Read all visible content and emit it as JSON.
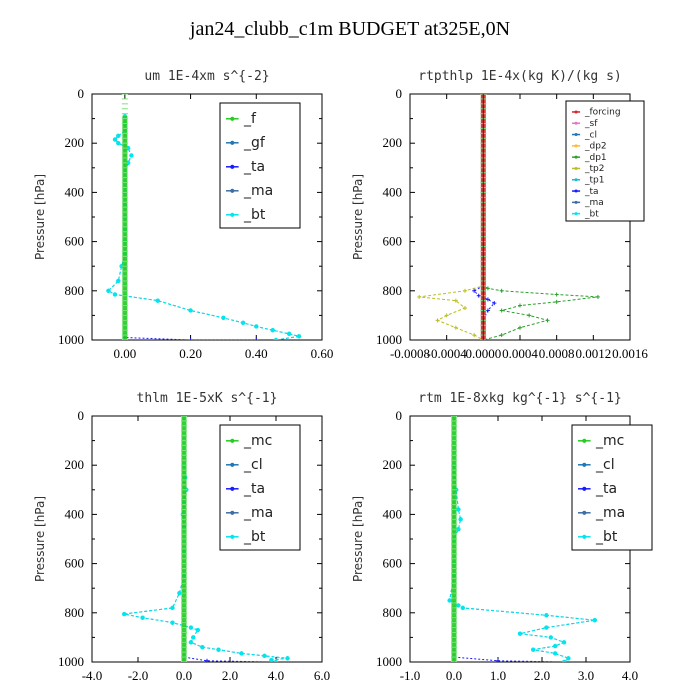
{
  "figure_title": "jan24_clubb_c1m  BUDGET at325E,0N",
  "colors": {
    "f": "#22cc22",
    "gf": "#1f77b4",
    "ta": "#1a1aff",
    "ma": "#3a6ea5",
    "bt": "#00e5ee",
    "mc": "#22cc22",
    "cl": "#1f77b4",
    "forcing": "#d62728",
    "sf": "#e377c2",
    "dp2": "#ffbb33",
    "dp1": "#2ca02c",
    "tp2": "#bcbd22",
    "tp1": "#17becf"
  },
  "chart_data": [
    {
      "type": "line",
      "title": "um  1E-4xm s^{-2}",
      "ylabel": "Pressure [hPa]",
      "ylim": [
        1000,
        0
      ],
      "xlim": [
        -0.1,
        0.6
      ],
      "xticks": [
        "0.00",
        "0.20",
        "0.40",
        "0.60"
      ],
      "yticks": [
        "0",
        "200",
        "400",
        "600",
        "800",
        "1000"
      ],
      "legend": [
        "_f",
        "_gf",
        "_ta",
        "_ma",
        "_bt"
      ],
      "legend_placement": "upper-right",
      "series": [
        {
          "name": "_f",
          "color_key": "f",
          "x": [
            0,
            0,
            0,
            0,
            0,
            0,
            0,
            0,
            0,
            0,
            0
          ],
          "y": [
            90,
            200,
            300,
            400,
            500,
            600,
            700,
            800,
            900,
            960,
            1000
          ]
        },
        {
          "name": "_gf",
          "color_key": "gf",
          "x": [
            0.0,
            0.0,
            0.0,
            -0.02,
            -0.03,
            -0.02,
            0.01,
            0.02,
            0.01,
            0.0,
            0.0,
            0.0,
            0.0,
            0.0,
            0.0,
            0.0,
            0.0,
            -0.01,
            -0.02,
            -0.05,
            -0.03,
            0.1,
            0.2,
            0.3,
            0.36,
            0.4,
            0.45,
            0.5,
            0.53,
            0.46
          ],
          "y": [
            90,
            120,
            150,
            170,
            185,
            200,
            220,
            250,
            280,
            320,
            360,
            400,
            450,
            500,
            550,
            600,
            650,
            700,
            760,
            800,
            815,
            840,
            880,
            910,
            930,
            945,
            960,
            975,
            985,
            1000
          ]
        },
        {
          "name": "_ta",
          "color_key": "ta",
          "x": [
            0.0,
            0.0,
            0.2,
            0.4
          ],
          "y": [
            980,
            990,
            1000,
            1000
          ]
        },
        {
          "name": "_ma",
          "color_key": "ma",
          "x": [
            0,
            0,
            0,
            0,
            0
          ],
          "y": [
            100,
            300,
            500,
            700,
            1000
          ]
        },
        {
          "name": "_bt",
          "color_key": "bt",
          "x": [
            0.0,
            0.0,
            0.0,
            -0.02,
            -0.03,
            -0.02,
            0.01,
            0.02,
            0.01,
            0.0,
            0.0,
            0.0,
            0.0,
            0.0,
            0.0,
            0.0,
            0.0,
            -0.01,
            -0.02,
            -0.05,
            -0.03,
            0.1,
            0.2,
            0.3,
            0.36,
            0.4,
            0.45,
            0.5,
            0.53,
            0.46
          ],
          "y": [
            90,
            120,
            150,
            170,
            185,
            200,
            220,
            250,
            280,
            320,
            360,
            400,
            450,
            500,
            550,
            600,
            650,
            700,
            760,
            800,
            815,
            840,
            880,
            910,
            930,
            945,
            960,
            975,
            985,
            1000
          ]
        }
      ]
    },
    {
      "type": "line",
      "title": "rtpthlp  1E-4x(kg K)/(kg s)",
      "ylabel": "Pressure [hPa]",
      "ylim": [
        1000,
        0
      ],
      "xlim": [
        -0.0008,
        0.0016
      ],
      "xticks": [
        "-0.0008",
        "-0.0004",
        "0.0000",
        "0.0004",
        "0.0008",
        "0.0012",
        "0.0016"
      ],
      "yticks": [
        "0",
        "200",
        "400",
        "600",
        "800",
        "1000"
      ],
      "legend": [
        "_forcing",
        "_sf",
        "_cl",
        "_dp2",
        "_dp1",
        "_tp2",
        "_tp1",
        "_ta",
        "_ma",
        "_bt"
      ],
      "legend_placement": "upper-right",
      "series": [
        {
          "name": "_dp1",
          "color_key": "dp1",
          "x": [
            0,
            0,
            0,
            0,
            0,
            0,
            0,
            0,
            0,
            0,
            0,
            5e-05,
            0.0002,
            0.0008,
            0.00125,
            0.0008,
            0.0004,
            0.0002,
            0.0005,
            0.0007,
            0.0004,
            0.0002,
            0.0
          ],
          "y": [
            0,
            100,
            200,
            300,
            400,
            500,
            600,
            700,
            740,
            760,
            780,
            790,
            800,
            815,
            825,
            845,
            860,
            880,
            900,
            920,
            950,
            980,
            1000
          ]
        },
        {
          "name": "_tp2",
          "color_key": "tp2",
          "x": [
            0,
            0,
            0,
            0,
            0,
            0,
            -0.0002,
            -0.0007,
            -0.0003,
            -0.0002,
            -0.0004,
            -0.0005,
            -0.0003,
            -0.0001,
            0.0
          ],
          "y": [
            0,
            200,
            400,
            600,
            740,
            780,
            800,
            825,
            840,
            870,
            900,
            920,
            950,
            980,
            1000
          ]
        },
        {
          "name": "_ta",
          "color_key": "ta",
          "x": [
            0,
            0,
            0,
            0,
            -0.0001,
            -5e-05,
            5e-05,
            0.00012,
            5e-05,
            0.0,
            0.0
          ],
          "y": [
            0,
            400,
            700,
            780,
            800,
            820,
            835,
            850,
            880,
            920,
            1000
          ]
        },
        {
          "name": "_forcing",
          "color_key": "forcing",
          "x": [
            0,
            0
          ],
          "y": [
            0,
            1000
          ]
        }
      ]
    },
    {
      "type": "line",
      "title": "thlm  1E-5xK s^{-1}",
      "ylabel": "Pressure [hPa]",
      "ylim": [
        1000,
        0
      ],
      "xlim": [
        -4.0,
        6.0
      ],
      "xticks": [
        "-4.0",
        "-2.0",
        "0.0",
        "2.0",
        "4.0",
        "6.0"
      ],
      "yticks": [
        "0",
        "200",
        "400",
        "600",
        "800",
        "1000"
      ],
      "legend": [
        "_mc",
        "_cl",
        "_ta",
        "_ma",
        "_bt"
      ],
      "legend_placement": "upper-right",
      "series": [
        {
          "name": "_mc",
          "color_key": "mc",
          "x": [
            0,
            0,
            0,
            0,
            0,
            0,
            0
          ],
          "y": [
            0,
            200,
            400,
            600,
            800,
            900,
            1000
          ]
        },
        {
          "name": "_cl",
          "color_key": "cl",
          "x": [
            0.0,
            0.0,
            0.05,
            0.1,
            0.0,
            -0.05,
            0.0,
            0.0,
            0.0,
            -0.2,
            -0.5,
            -2.6,
            -1.8,
            -0.5,
            0.3,
            0.6,
            0.4,
            0.3,
            0.8,
            1.5,
            2.5,
            3.5,
            4.5,
            3.8,
            4.0
          ],
          "y": [
            0,
            200,
            250,
            300,
            350,
            400,
            450,
            550,
            650,
            720,
            780,
            805,
            820,
            840,
            860,
            870,
            900,
            920,
            940,
            950,
            965,
            975,
            985,
            992,
            1000
          ]
        },
        {
          "name": "_ta",
          "color_key": "ta",
          "x": [
            0.0,
            0.0,
            1.0,
            3.8
          ],
          "y": [
            900,
            980,
            995,
            1000
          ]
        },
        {
          "name": "_ma",
          "color_key": "ma",
          "x": [
            0,
            0,
            0
          ],
          "y": [
            0,
            500,
            1000
          ]
        },
        {
          "name": "_bt",
          "color_key": "bt",
          "x": [
            0.0,
            0.0,
            0.05,
            0.1,
            0.0,
            -0.05,
            0.0,
            0.0,
            0.0,
            -0.2,
            -0.5,
            -2.6,
            -1.8,
            -0.5,
            0.3,
            0.6,
            0.4,
            0.3,
            0.8,
            1.5,
            2.5,
            3.5,
            4.5,
            3.8,
            4.0
          ],
          "y": [
            0,
            200,
            250,
            300,
            350,
            400,
            450,
            550,
            650,
            720,
            780,
            805,
            820,
            840,
            860,
            870,
            900,
            920,
            940,
            950,
            965,
            975,
            985,
            992,
            1000
          ]
        }
      ]
    },
    {
      "type": "line",
      "title": "rtm  1E-8xkg kg^{-1} s^{-1}",
      "ylabel": "Pressure [hPa]",
      "ylim": [
        1000,
        0
      ],
      "xlim": [
        -1.0,
        4.0
      ],
      "xticks": [
        "-1.0",
        "0.0",
        "1.0",
        "2.0",
        "3.0",
        "4.0"
      ],
      "yticks": [
        "0",
        "200",
        "400",
        "600",
        "800",
        "1000"
      ],
      "legend": [
        "_mc",
        "_cl",
        "_ta",
        "_ma",
        "_bt"
      ],
      "legend_placement": "upper-right",
      "series": [
        {
          "name": "_mc",
          "color_key": "mc",
          "x": [
            0,
            0,
            0,
            0,
            0,
            0,
            0
          ],
          "y": [
            0,
            200,
            400,
            600,
            800,
            900,
            1000
          ]
        },
        {
          "name": "_cl",
          "color_key": "cl",
          "x": [
            0.0,
            0.0,
            0.05,
            0.1,
            0.15,
            0.1,
            0.0,
            0.0,
            0.0,
            -0.1,
            0.1,
            0.2,
            2.1,
            3.2,
            2.1,
            1.5,
            2.2,
            2.5,
            2.3,
            1.8,
            2.3,
            2.6,
            2.5
          ],
          "y": [
            0,
            200,
            300,
            380,
            420,
            460,
            500,
            600,
            650,
            750,
            770,
            780,
            810,
            830,
            860,
            885,
            900,
            920,
            935,
            950,
            965,
            985,
            1000
          ]
        },
        {
          "name": "_ta",
          "color_key": "ta",
          "x": [
            0.0,
            0.0,
            1.0,
            2.5
          ],
          "y": [
            900,
            980,
            995,
            1000
          ]
        },
        {
          "name": "_ma",
          "color_key": "ma",
          "x": [
            0,
            0,
            0
          ],
          "y": [
            0,
            500,
            1000
          ]
        },
        {
          "name": "_bt",
          "color_key": "bt",
          "x": [
            0.0,
            0.0,
            0.05,
            0.1,
            0.15,
            0.1,
            0.0,
            0.0,
            0.0,
            -0.1,
            0.1,
            0.2,
            2.1,
            3.2,
            2.1,
            1.5,
            2.2,
            2.5,
            2.3,
            1.8,
            2.3,
            2.6,
            2.5
          ],
          "y": [
            0,
            200,
            300,
            380,
            420,
            460,
            500,
            600,
            650,
            750,
            770,
            780,
            810,
            830,
            860,
            885,
            900,
            920,
            935,
            950,
            965,
            985,
            1000
          ]
        }
      ]
    }
  ]
}
